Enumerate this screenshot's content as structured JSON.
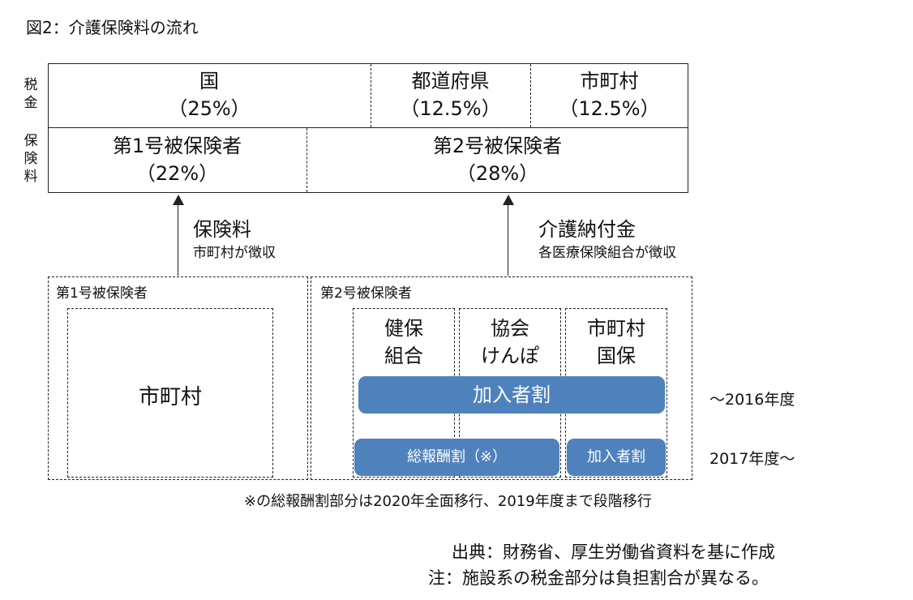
{
  "title": "図2：介護保険料の流れ",
  "side_labels": {
    "tax": "税金",
    "premium": "保険料"
  },
  "tax_row": [
    {
      "name": "国",
      "share": "（25%）"
    },
    {
      "name": "都道府県",
      "share": "（12.5%）"
    },
    {
      "name": "市町村",
      "share": "（12.5%）"
    }
  ],
  "premium_row": [
    {
      "name": "第1号被保険者",
      "share": "（22%）"
    },
    {
      "name": "第2号被保険者",
      "share": "（28%）"
    }
  ],
  "flows": {
    "left": {
      "title": "保険料",
      "sub": "市町村が徴収"
    },
    "right": {
      "title": "介護納付金",
      "sub": "各医療保険組合が徴収"
    }
  },
  "lower": {
    "group1_label": "第1号被保険者",
    "group1_inner": "市町村",
    "group2_label": "第2号被保険者",
    "insurers": [
      {
        "line1": "健保",
        "line2": "組合"
      },
      {
        "line1": "協会",
        "line2": "けんぽ"
      },
      {
        "line1": "市町村",
        "line2": "国保"
      }
    ],
    "bar_2016": "加入者割",
    "bar_2017_left": "総報酬割（※）",
    "bar_2017_right": "加入者割",
    "year_2016": "～2016年度",
    "year_2017": "2017年度～",
    "bar_color": "#4f81bd"
  },
  "footnote": "※の総報酬割部分は2020年全面移行、2019年度まで段階移行",
  "source": "出典：財務省、厚生労働省資料を基に作成",
  "note": "注：施設系の税金部分は負担割合が異なる。"
}
